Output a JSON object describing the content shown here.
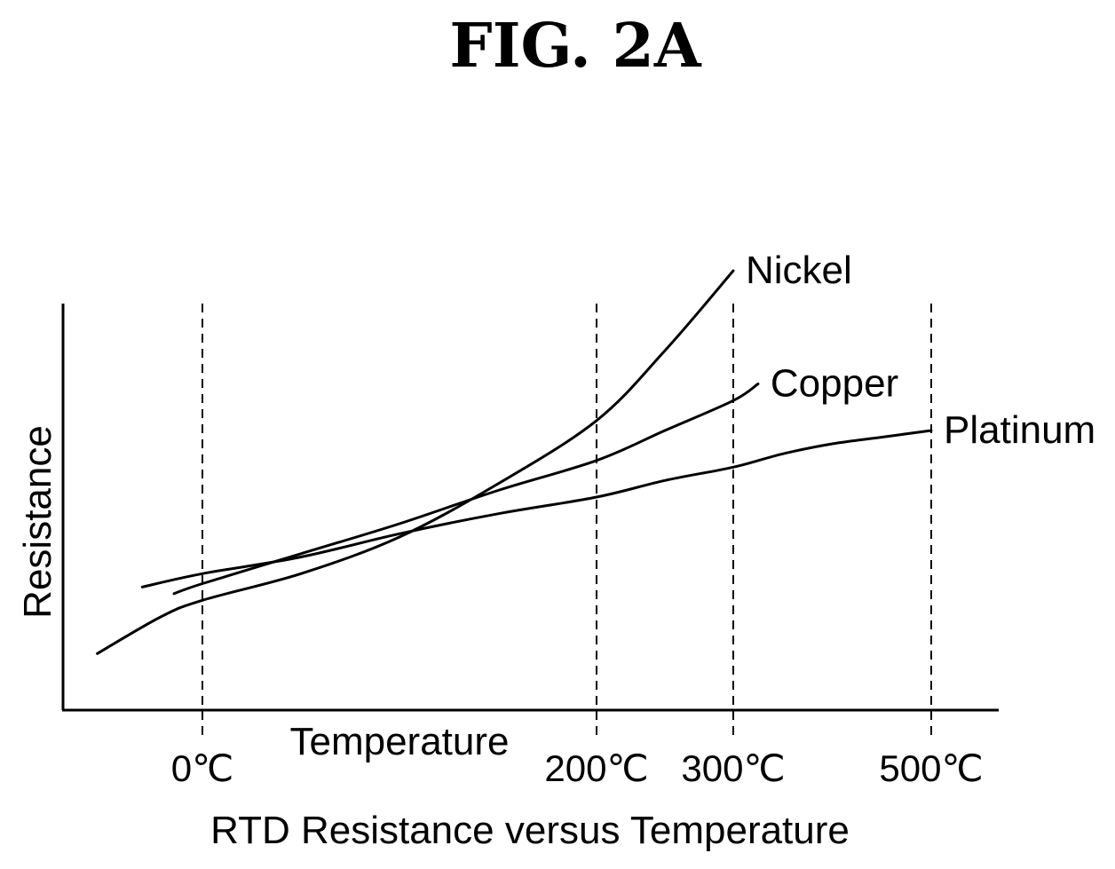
{
  "figure_title": "FIG. 2A",
  "chart_data": {
    "type": "line",
    "title": "RTD Resistance versus Temperature",
    "xlabel": "Temperature",
    "ylabel": "Resistance",
    "x_ticks": [
      "0℃",
      "200℃",
      "300℃",
      "500℃"
    ],
    "guide_lines_x": [
      0,
      200,
      300,
      500
    ],
    "grid": false,
    "series": [
      {
        "name": "Nickel",
        "x": [
          -63,
          -25,
          0,
          50,
          100,
          150,
          200,
          250,
          300
        ],
        "y": [
          17,
          28,
          33,
          41,
          52,
          68,
          87,
          108,
          132
        ]
      },
      {
        "name": "Copper",
        "x": [
          -17,
          0,
          50,
          100,
          150,
          200,
          250,
          300,
          325
        ],
        "y": [
          35,
          38,
          47,
          56,
          66,
          75,
          84,
          93,
          98
        ]
      },
      {
        "name": "Platinum",
        "x": [
          -36,
          0,
          50,
          100,
          150,
          200,
          250,
          300,
          350,
          400,
          450,
          500
        ],
        "y": [
          37,
          41,
          46,
          53,
          59,
          64,
          69,
          73,
          77,
          80,
          82,
          84
        ]
      }
    ]
  }
}
